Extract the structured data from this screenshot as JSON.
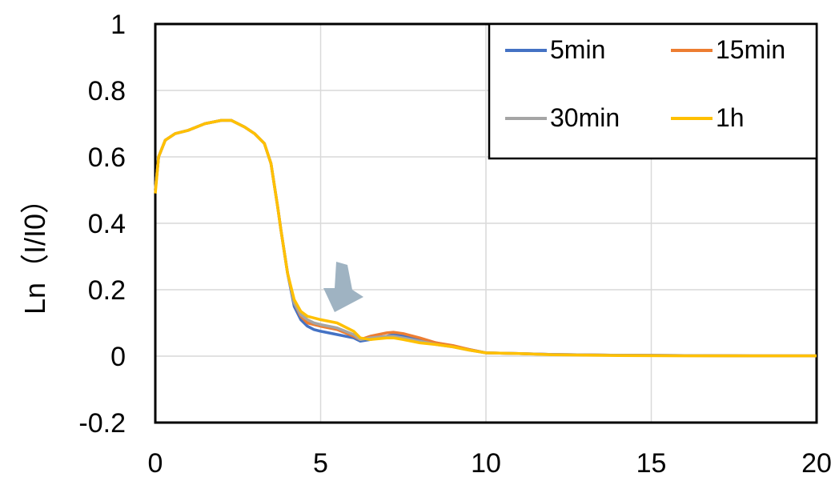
{
  "chart_data": {
    "type": "line",
    "xlabel": "",
    "ylabel": "Ln（I/I0）",
    "xlim": [
      0,
      20
    ],
    "ylim": [
      -0.2,
      1
    ],
    "x_ticks": [
      "0",
      "5",
      "10",
      "15",
      "20"
    ],
    "y_ticks": [
      "1",
      "0.8",
      "0.6",
      "0.4",
      "0.2",
      "0",
      "-0.2"
    ],
    "grid": true,
    "legend_position": "top-right",
    "annotation": "arrow pointing down at the shoulder near x=5.5",
    "series": [
      {
        "name": "5min",
        "color": "#4472c4",
        "x": [
          0,
          0.1,
          0.3,
          0.6,
          1,
          1.5,
          2,
          2.3,
          2.7,
          3,
          3.3,
          3.5,
          3.7,
          3.8,
          4,
          4.2,
          4.4,
          4.6,
          4.8,
          5,
          5.5,
          6,
          6.2,
          6.5,
          7,
          7.2,
          7.5,
          8,
          8.5,
          9,
          9.5,
          10,
          11,
          12,
          14,
          16,
          18,
          20
        ],
        "y": [
          0.5,
          0.6,
          0.65,
          0.67,
          0.68,
          0.7,
          0.71,
          0.71,
          0.69,
          0.67,
          0.64,
          0.58,
          0.45,
          0.38,
          0.25,
          0.15,
          0.11,
          0.09,
          0.08,
          0.075,
          0.065,
          0.055,
          0.045,
          0.05,
          0.06,
          0.065,
          0.06,
          0.05,
          0.04,
          0.03,
          0.02,
          0.01,
          0.008,
          0.005,
          0.003,
          0.002,
          0.001,
          0.001
        ]
      },
      {
        "name": "15min",
        "color": "#ed7d31",
        "x": [
          0,
          0.1,
          0.3,
          0.6,
          1,
          1.5,
          2,
          2.3,
          2.7,
          3,
          3.3,
          3.5,
          3.7,
          3.8,
          4,
          4.2,
          4.4,
          4.6,
          4.8,
          5,
          5.5,
          6,
          6.2,
          6.5,
          7,
          7.2,
          7.5,
          8,
          8.5,
          9,
          9.5,
          10,
          11,
          12,
          14,
          16,
          18,
          20
        ],
        "y": [
          0.5,
          0.6,
          0.65,
          0.67,
          0.68,
          0.7,
          0.71,
          0.71,
          0.69,
          0.67,
          0.64,
          0.58,
          0.45,
          0.38,
          0.25,
          0.16,
          0.12,
          0.1,
          0.095,
          0.09,
          0.08,
          0.06,
          0.05,
          0.06,
          0.07,
          0.072,
          0.068,
          0.055,
          0.04,
          0.032,
          0.02,
          0.01,
          0.008,
          0.005,
          0.003,
          0.002,
          0.001,
          0.001
        ]
      },
      {
        "name": "30min",
        "color": "#a5a5a5",
        "x": [
          0,
          0.1,
          0.3,
          0.6,
          1,
          1.5,
          2,
          2.3,
          2.7,
          3,
          3.3,
          3.5,
          3.7,
          3.8,
          4,
          4.2,
          4.4,
          4.6,
          4.8,
          5,
          5.5,
          6,
          6.2,
          6.5,
          7,
          7.2,
          7.5,
          8,
          8.5,
          9,
          9.5,
          10,
          11,
          12,
          14,
          16,
          18,
          20
        ],
        "y": [
          0.5,
          0.6,
          0.65,
          0.67,
          0.68,
          0.7,
          0.71,
          0.71,
          0.69,
          0.67,
          0.64,
          0.58,
          0.45,
          0.38,
          0.25,
          0.16,
          0.125,
          0.11,
          0.1,
          0.095,
          0.085,
          0.065,
          0.05,
          0.055,
          0.06,
          0.06,
          0.055,
          0.045,
          0.035,
          0.028,
          0.018,
          0.01,
          0.008,
          0.005,
          0.003,
          0.002,
          0.001,
          0.001
        ]
      },
      {
        "name": "1h",
        "color": "#ffc000",
        "x": [
          0,
          0.1,
          0.3,
          0.6,
          1,
          1.5,
          2,
          2.3,
          2.7,
          3,
          3.3,
          3.5,
          3.7,
          3.8,
          4,
          4.2,
          4.4,
          4.6,
          4.8,
          5,
          5.5,
          6,
          6.2,
          6.5,
          7,
          7.2,
          7.5,
          8,
          8.5,
          9,
          9.5,
          10,
          11,
          12,
          14,
          16,
          18,
          20
        ],
        "y": [
          0.49,
          0.6,
          0.65,
          0.67,
          0.68,
          0.7,
          0.71,
          0.71,
          0.69,
          0.67,
          0.64,
          0.58,
          0.45,
          0.38,
          0.25,
          0.17,
          0.135,
          0.12,
          0.115,
          0.11,
          0.1,
          0.075,
          0.055,
          0.05,
          0.055,
          0.055,
          0.05,
          0.04,
          0.035,
          0.028,
          0.018,
          0.01,
          0.008,
          0.004,
          0.002,
          0.001,
          0.001,
          0.001
        ]
      }
    ]
  }
}
